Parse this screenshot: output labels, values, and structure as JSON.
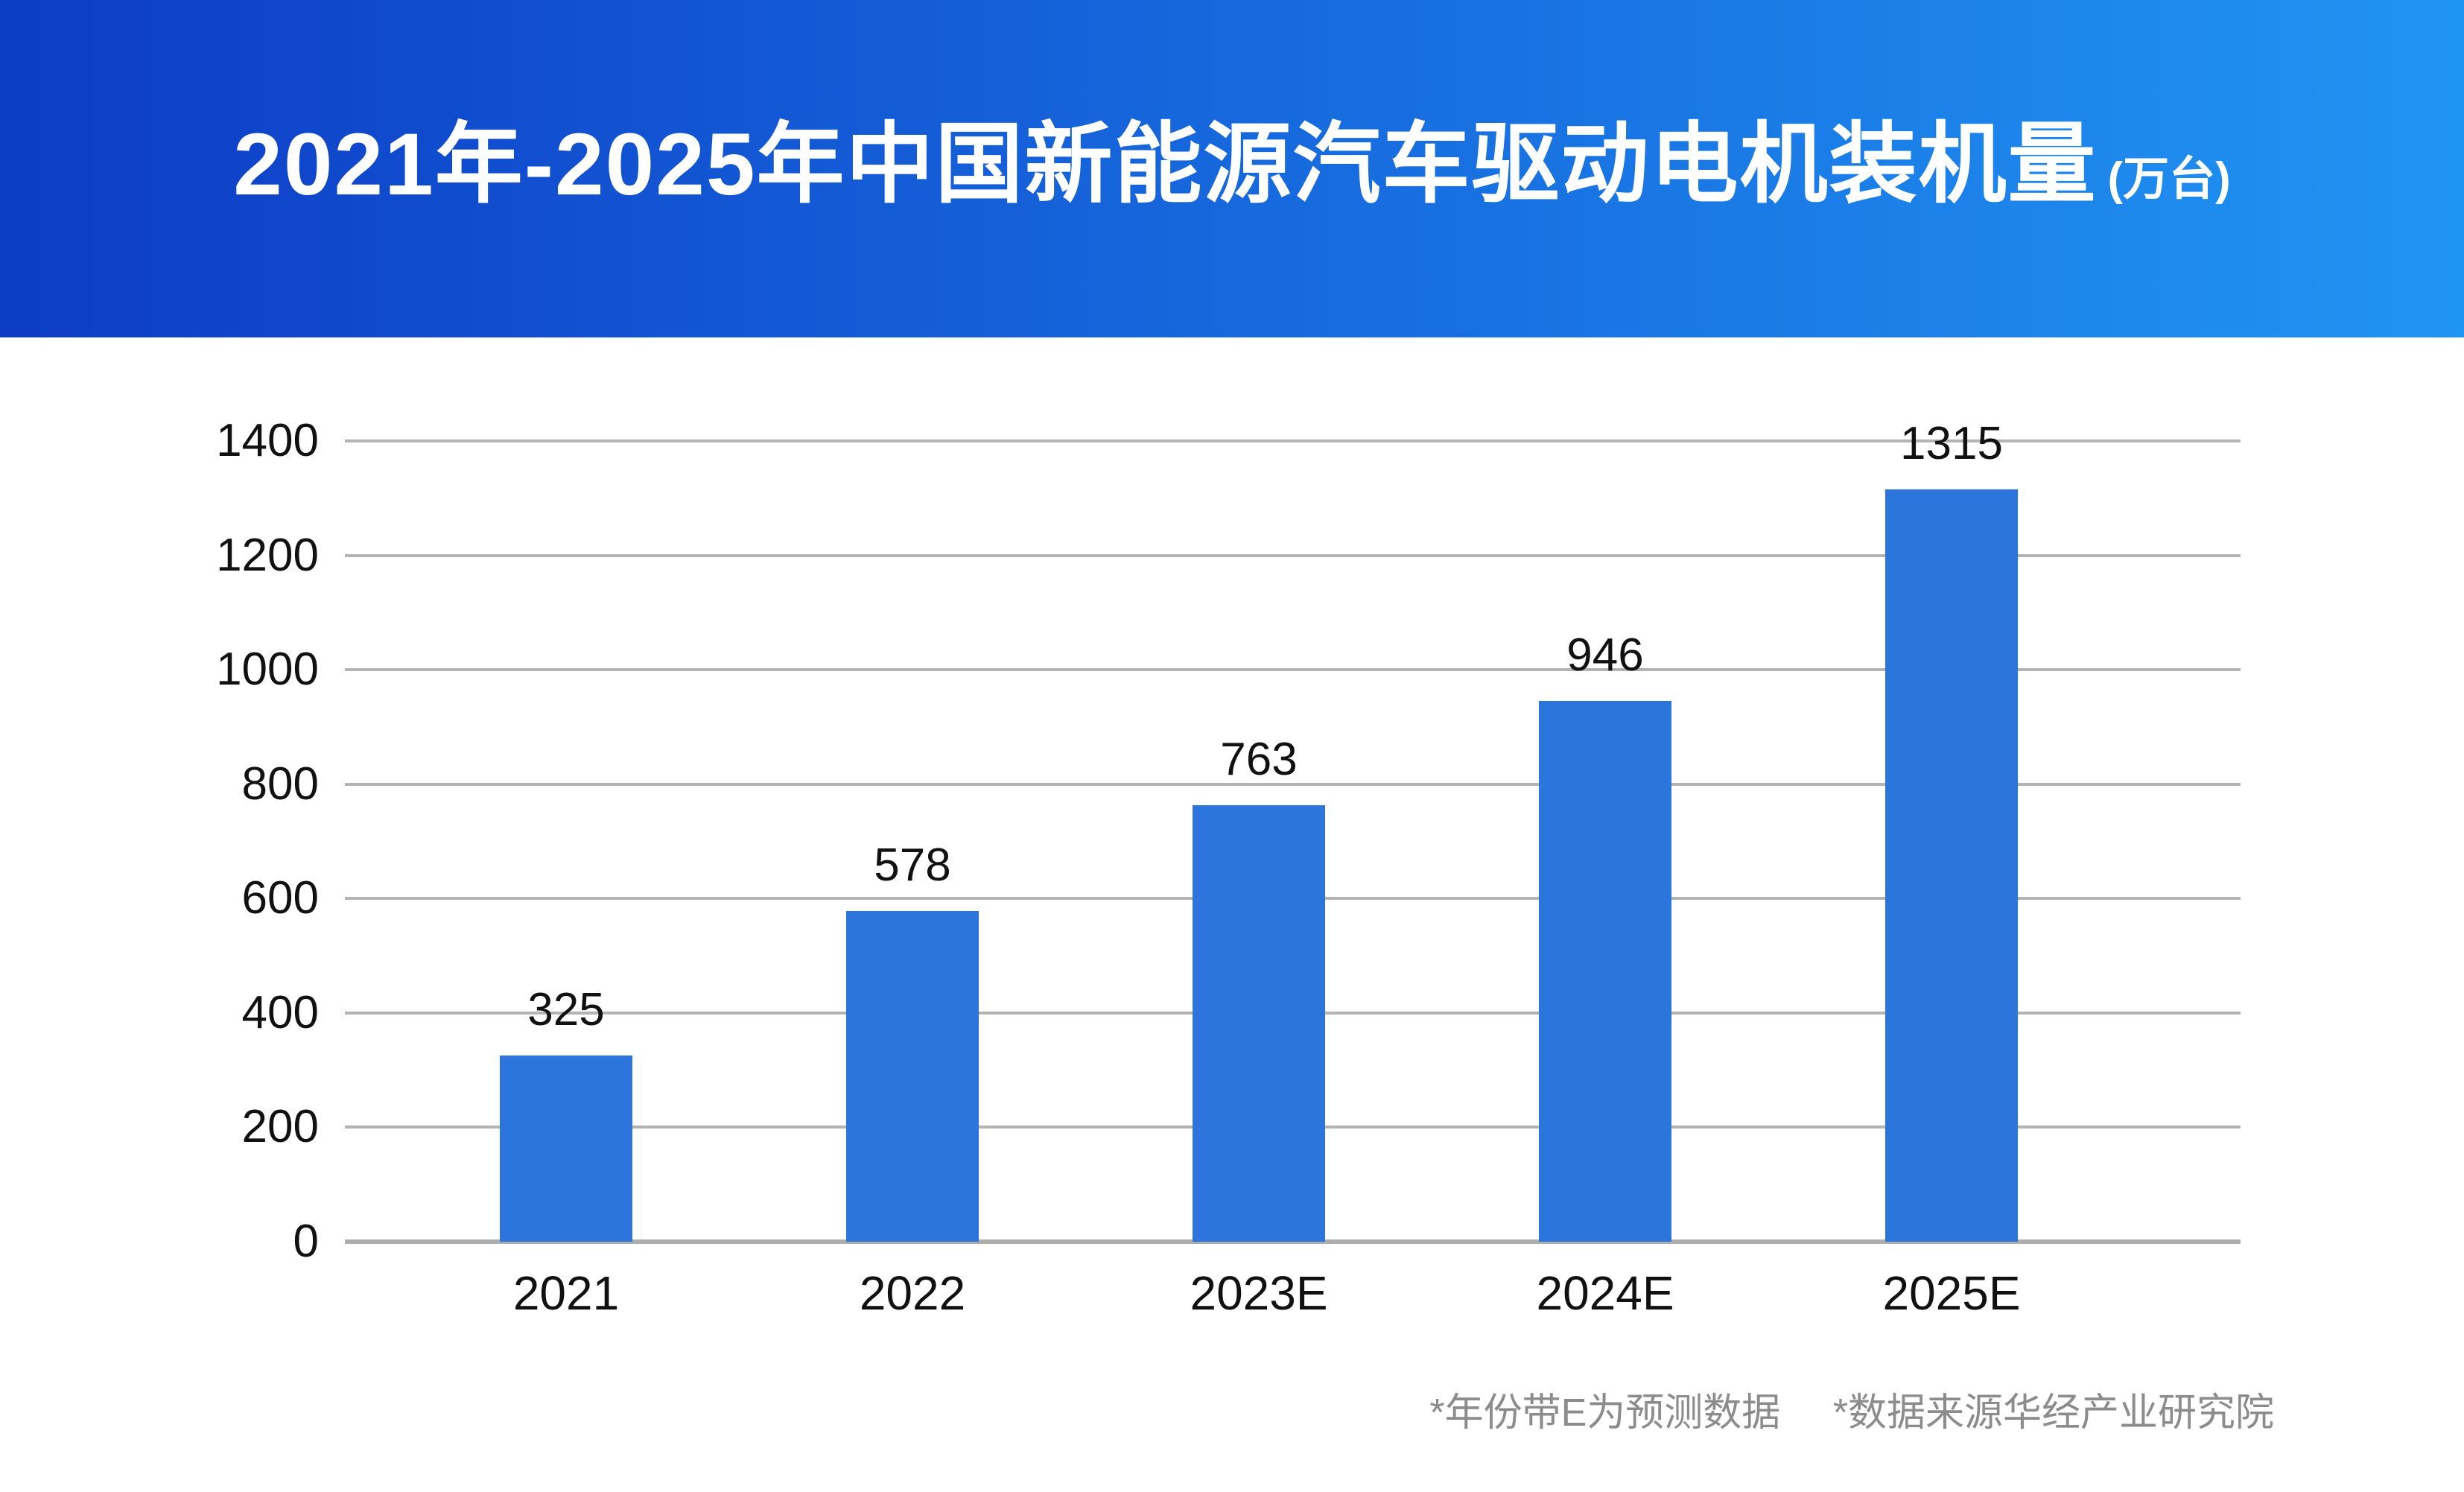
{
  "header": {
    "gradient_left": "#0D3CC6",
    "gradient_right": "#2094F3",
    "title_color": "#FFFFFF"
  },
  "chart_data": {
    "type": "bar",
    "title": "2021年-2025年中国新能源汽车驱动电机装机量",
    "unit_label": "(万台)",
    "categories": [
      "2021",
      "2022",
      "2023E",
      "2024E",
      "2025E"
    ],
    "values": [
      325,
      578,
      763,
      946,
      1315
    ],
    "value_labels": [
      "325",
      "578",
      "763",
      "946",
      "1315"
    ],
    "ylim": [
      0,
      1400
    ],
    "yticks": [
      0,
      200,
      400,
      600,
      800,
      1000,
      1200,
      1400
    ],
    "grid": true,
    "legend": "none",
    "bar_color": "#2B75DD",
    "gridline_color": "#B3B3B3",
    "tick_label_color": "#111111"
  },
  "footnotes": {
    "note1": "*年份带E为预测数据",
    "note2": "*数据来源华经产业研究院",
    "color": "#8C8C8C"
  }
}
